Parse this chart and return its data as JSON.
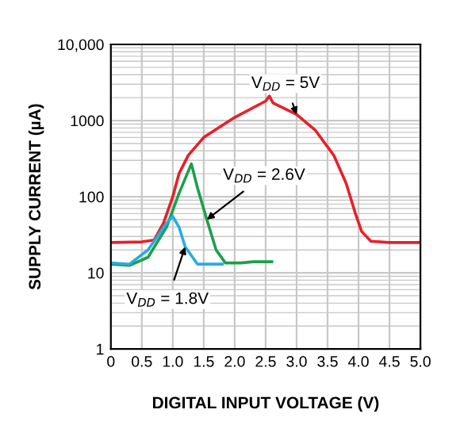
{
  "chart_data": {
    "type": "line",
    "xlabel": "DIGITAL INPUT VOLTAGE (V)",
    "ylabel": "SUPPLY CURRENT (µA)",
    "log": "y",
    "xlim": [
      0,
      5
    ],
    "xticks": [
      {
        "value": 0,
        "label": "0"
      },
      0.5,
      {
        "value": 1,
        "label": "1.0"
      },
      1.5,
      {
        "value": 2,
        "label": "2.0"
      },
      2.5,
      {
        "value": 3,
        "label": "3.0"
      },
      3.5,
      {
        "value": 4,
        "label": "4.0"
      },
      4.5,
      {
        "value": 5,
        "label": "5.0"
      }
    ],
    "ylim": [
      1,
      10000
    ],
    "yticks": [
      1,
      10,
      100,
      1000,
      {
        "value": 10000,
        "label": "10,000"
      }
    ],
    "grid": true,
    "line_style": "solid",
    "marker": "none",
    "series": [
      {
        "color": "#e8202a",
        "x": [
          0,
          0.5,
          0.7,
          0.85,
          1.0,
          1.1,
          1.25,
          1.5,
          2.0,
          2.5,
          2.56,
          2.62,
          3.0,
          3.3,
          3.6,
          3.8,
          3.95,
          4.05,
          4.2,
          4.5,
          5.0
        ],
        "values": [
          25,
          25.5,
          27,
          45,
          100,
          200,
          350,
          600,
          1100,
          1800,
          2100,
          1700,
          1200,
          750,
          350,
          150,
          60,
          35,
          26,
          25,
          25
        ]
      },
      {
        "color": "#1aa14a",
        "x": [
          0,
          0.3,
          0.6,
          0.9,
          1.1,
          1.3,
          1.4,
          1.55,
          1.7,
          1.85,
          2.1,
          2.3,
          2.6
        ],
        "values": [
          13,
          12.5,
          16,
          40,
          110,
          270,
          130,
          50,
          20,
          13.5,
          13.5,
          14,
          14
        ]
      },
      {
        "color": "#29abe2",
        "x": [
          0,
          0.3,
          0.6,
          0.9,
          1.0,
          1.1,
          1.2,
          1.4,
          1.8
        ],
        "values": [
          13.5,
          13,
          20,
          45,
          55,
          40,
          22,
          13,
          13
        ]
      }
    ],
    "annotations": [
      {
        "text": "V$_{DD}$ = 5V",
        "x": 3.0,
        "y": 1200
      },
      {
        "text": "V$_{DD}$ = 2.6V",
        "x": 1.55,
        "y": 50
      },
      {
        "text": "V$_{DD}$ = 1.8V",
        "x": 1.2,
        "y": 22
      }
    ]
  }
}
